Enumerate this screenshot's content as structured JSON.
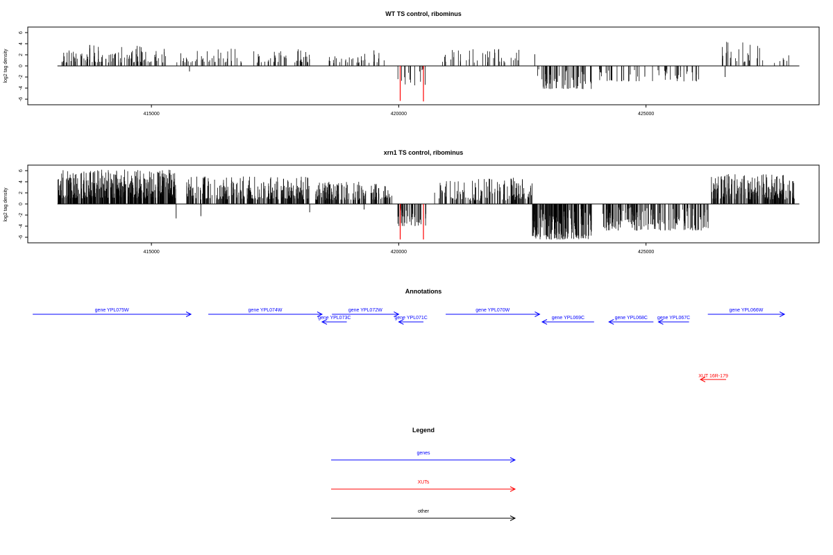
{
  "chart_data": [
    {
      "type": "bar",
      "title": "WT TS control, ribominus",
      "ylabel": "log2 tag density",
      "xlabel": "",
      "xlim": [
        412500,
        428500
      ],
      "ylim": [
        -7,
        7
      ],
      "x_ticks": [
        415000,
        420000,
        425000
      ],
      "x_tick_labels": [
        "415000",
        "420000",
        "425000"
      ],
      "y_ticks": [
        -6,
        -4,
        -2,
        0,
        2,
        4,
        6
      ],
      "y_tick_labels": [
        "-6",
        "-4",
        "-2",
        "0",
        "2",
        "4",
        "6"
      ],
      "baseline_range": [
        413100,
        428100
      ],
      "highlight_color": "#ff0000",
      "highlight_bars": [
        [
          420030,
          -6.3
        ],
        [
          420500,
          -6.4
        ]
      ],
      "segments": [
        {
          "start": 413150,
          "end": 415300,
          "min": 0.6,
          "max": 3.8,
          "n": 110,
          "seed": 11
        },
        {
          "start": 415500,
          "end": 415900,
          "min": 0.6,
          "max": 2.4,
          "n": 12,
          "seed": 12
        },
        {
          "start": 415900,
          "end": 418200,
          "min": 0.6,
          "max": 3.2,
          "n": 70,
          "seed": 13
        },
        {
          "start": 418400,
          "end": 419800,
          "min": 0.5,
          "max": 2.8,
          "n": 32,
          "seed": 14
        },
        {
          "start": 419980,
          "end": 420550,
          "min": -3.5,
          "max": -0.5,
          "n": 14,
          "seed": 15
        },
        {
          "start": 420850,
          "end": 422500,
          "min": 0.6,
          "max": 3.1,
          "n": 40,
          "seed": 16
        },
        {
          "start": 422800,
          "end": 423900,
          "min": -4.2,
          "max": -0.6,
          "n": 60,
          "seed": 17
        },
        {
          "start": 424000,
          "end": 426100,
          "min": -2.8,
          "max": -0.5,
          "n": 55,
          "seed": 18
        },
        {
          "start": 426500,
          "end": 427400,
          "min": 0.6,
          "max": 4.4,
          "n": 25,
          "seed": 19
        },
        {
          "start": 427500,
          "end": 427900,
          "min": 0.5,
          "max": 2.0,
          "n": 6,
          "seed": 20
        }
      ],
      "extra_bars": [
        [
          415770,
          -1.0
        ],
        [
          422750,
          2.1
        ],
        [
          426600,
          -2.0
        ],
        [
          424550,
          -2.6
        ],
        [
          419500,
          2.8
        ]
      ]
    },
    {
      "type": "bar",
      "title": "xrn1 TS control, ribominus",
      "ylabel": "log2 tag density",
      "xlabel": "",
      "xlim": [
        412500,
        428500
      ],
      "ylim": [
        -7,
        7
      ],
      "x_ticks": [
        415000,
        420000,
        425000
      ],
      "x_tick_labels": [
        "415000",
        "420000",
        "425000"
      ],
      "y_ticks": [
        -6,
        -4,
        -2,
        0,
        2,
        4,
        6
      ],
      "y_tick_labels": [
        "-6",
        "-4",
        "-2",
        "0",
        "2",
        "4",
        "6"
      ],
      "baseline_range": [
        413100,
        428100
      ],
      "highlight_color": "#ff0000",
      "highlight_bars": [
        [
          420030,
          -6.4
        ],
        [
          420500,
          -6.4
        ]
      ],
      "segments": [
        {
          "start": 413100,
          "end": 415500,
          "min": 1.0,
          "max": 6.2,
          "n": 420,
          "seed": 31
        },
        {
          "start": 415700,
          "end": 418200,
          "min": 0.8,
          "max": 5.0,
          "n": 260,
          "seed": 32
        },
        {
          "start": 418300,
          "end": 419900,
          "min": 0.7,
          "max": 4.0,
          "n": 150,
          "seed": 33
        },
        {
          "start": 419980,
          "end": 420550,
          "min": -4.0,
          "max": -0.8,
          "n": 40,
          "seed": 34
        },
        {
          "start": 420700,
          "end": 422700,
          "min": 0.6,
          "max": 4.8,
          "n": 140,
          "seed": 35
        },
        {
          "start": 422700,
          "end": 423900,
          "min": -6.4,
          "max": -0.8,
          "n": 180,
          "seed": 36
        },
        {
          "start": 424100,
          "end": 426300,
          "min": -4.8,
          "max": -0.6,
          "n": 170,
          "seed": 37
        },
        {
          "start": 426300,
          "end": 428000,
          "min": 0.8,
          "max": 5.4,
          "n": 200,
          "seed": 38
        }
      ],
      "extra_bars": [
        [
          415500,
          -2.6
        ],
        [
          416000,
          -2.2
        ],
        [
          418200,
          -1.5
        ],
        [
          419300,
          -1.0
        ],
        [
          427900,
          4.2
        ]
      ]
    }
  ],
  "annotations": {
    "title": "Annotations",
    "genes_color": "#0000ff",
    "xuts_color": "#ff0000",
    "genes": [
      {
        "label": "gene YPL075W",
        "x1": 412600,
        "x2": 415800,
        "dir": "right",
        "row": 1
      },
      {
        "label": "gene YPL074W",
        "x1": 416150,
        "x2": 418450,
        "dir": "right",
        "row": 1
      },
      {
        "label": "gene YPL072W",
        "x1": 418650,
        "x2": 420000,
        "dir": "right",
        "row": 1
      },
      {
        "label": "gene YPL073C",
        "x1": 418450,
        "x2": 418950,
        "dir": "left",
        "row": 2
      },
      {
        "label": "gene YPL071C",
        "x1": 420000,
        "x2": 420500,
        "dir": "left",
        "row": 2
      },
      {
        "label": "gene YPL070W",
        "x1": 420950,
        "x2": 422850,
        "dir": "right",
        "row": 1
      },
      {
        "label": "gene YPL069C",
        "x1": 422900,
        "x2": 423950,
        "dir": "left",
        "row": 2
      },
      {
        "label": "gene YPL068C",
        "x1": 424250,
        "x2": 425150,
        "dir": "left",
        "row": 2
      },
      {
        "label": "gene YPL067C",
        "x1": 425250,
        "x2": 425870,
        "dir": "left",
        "row": 2
      },
      {
        "label": "gene YPL066W",
        "x1": 426250,
        "x2": 427800,
        "dir": "right",
        "row": 1
      }
    ],
    "xuts": [
      {
        "label": "XUT 16R-179",
        "x1": 426100,
        "x2": 426620,
        "dir": "left"
      }
    ]
  },
  "legend": {
    "title": "Legend",
    "items": [
      {
        "label": "genes",
        "color": "#0000ff"
      },
      {
        "label": "XUTs",
        "color": "#ff0000"
      },
      {
        "label": "other",
        "color": "#000000"
      }
    ]
  }
}
